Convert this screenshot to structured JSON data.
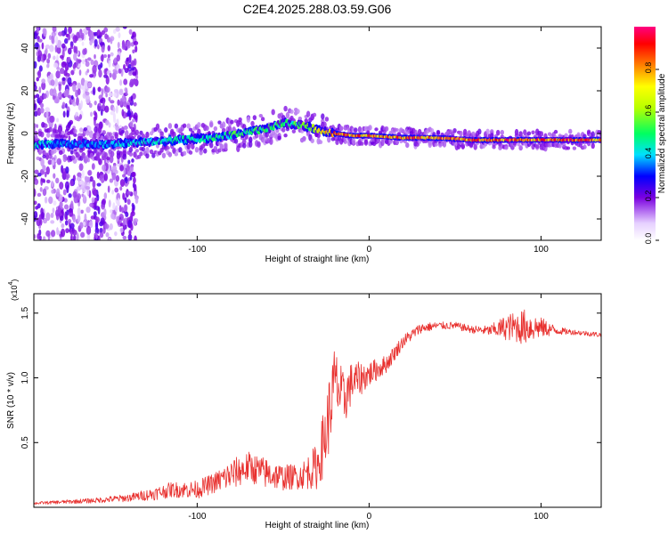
{
  "title": "C2E4.2025.288.03.59.G06",
  "chart_data": [
    {
      "type": "heatmap",
      "title": "C2E4.2025.288.03.59.G06",
      "xlabel": "Height of straight line (km)",
      "ylabel": "Frequency (Hz)",
      "xlim": [
        -195,
        135
      ],
      "ylim": [
        -50,
        50
      ],
      "x_ticks": [
        -100,
        0,
        100
      ],
      "y_ticks": [
        -40,
        -20,
        0,
        20,
        40
      ],
      "colorbar": {
        "label": "Normalized spectral amplitude",
        "range": [
          0,
          1
        ],
        "ticks": [
          "0.0",
          "0.2",
          "0.4",
          "0.6",
          "0.8"
        ]
      },
      "ridge": [
        {
          "x": -190,
          "freq": -5,
          "amp": 0.45
        },
        {
          "x": -170,
          "freq": -5,
          "amp": 0.4
        },
        {
          "x": -150,
          "freq": -5,
          "amp": 0.42
        },
        {
          "x": -130,
          "freq": -4,
          "amp": 0.45
        },
        {
          "x": -110,
          "freq": -3,
          "amp": 0.5
        },
        {
          "x": -90,
          "freq": -2,
          "amp": 0.5
        },
        {
          "x": -75,
          "freq": 0,
          "amp": 0.55
        },
        {
          "x": -60,
          "freq": 2,
          "amp": 0.55
        },
        {
          "x": -50,
          "freq": 5,
          "amp": 0.55
        },
        {
          "x": -40,
          "freq": 4,
          "amp": 0.55
        },
        {
          "x": -30,
          "freq": 2,
          "amp": 0.7
        },
        {
          "x": -20,
          "freq": 0,
          "amp": 0.9
        },
        {
          "x": -10,
          "freq": -1,
          "amp": 0.88
        },
        {
          "x": 0,
          "freq": -1,
          "amp": 0.9
        },
        {
          "x": 20,
          "freq": -2,
          "amp": 0.92
        },
        {
          "x": 40,
          "freq": -2,
          "amp": 0.95
        },
        {
          "x": 60,
          "freq": -3,
          "amp": 0.9
        },
        {
          "x": 80,
          "freq": -3,
          "amp": 0.95
        },
        {
          "x": 100,
          "freq": -3,
          "amp": 0.92
        },
        {
          "x": 120,
          "freq": -3,
          "amp": 0.92
        },
        {
          "x": 135,
          "freq": -3,
          "amp": 0.9
        }
      ],
      "noise_region": {
        "x_from": -195,
        "x_to": -135
      }
    },
    {
      "type": "line",
      "xlabel": "Height of straight line (km)",
      "ylabel": "SNR (10 * v/v)",
      "y_scale_label": "(x10^4)",
      "y_scale_base": "(x10",
      "y_scale_exp": "4",
      "xlim": [
        -195,
        135
      ],
      "ylim": [
        0,
        1.65
      ],
      "x_ticks": [
        -100,
        0,
        100
      ],
      "y_ticks": [
        "0.5",
        "1.0",
        "1.5"
      ],
      "y_tick_values": [
        0.5,
        1.0,
        1.5
      ],
      "line_color": "#e8302e",
      "series": [
        {
          "name": "SNR",
          "x": [
            -195,
            -160,
            -140,
            -125,
            -115,
            -100,
            -90,
            -80,
            -70,
            -60,
            -50,
            -40,
            -30,
            -25,
            -20,
            -15,
            -10,
            -5,
            0,
            10,
            20,
            30,
            40,
            50,
            60,
            70,
            80,
            90,
            100,
            110,
            120,
            135
          ],
          "y": [
            0.03,
            0.05,
            0.07,
            0.1,
            0.13,
            0.13,
            0.18,
            0.24,
            0.3,
            0.25,
            0.22,
            0.23,
            0.3,
            0.55,
            0.95,
            0.8,
            0.95,
            0.98,
            1.02,
            1.1,
            1.28,
            1.38,
            1.4,
            1.4,
            1.37,
            1.36,
            1.38,
            1.38,
            1.38,
            1.36,
            1.35,
            1.33
          ],
          "noise": [
            0.01,
            0.02,
            0.03,
            0.05,
            0.06,
            0.07,
            0.08,
            0.12,
            0.12,
            0.12,
            0.1,
            0.1,
            0.18,
            0.3,
            0.28,
            0.22,
            0.16,
            0.13,
            0.1,
            0.07,
            0.05,
            0.04,
            0.03,
            0.03,
            0.03,
            0.04,
            0.1,
            0.14,
            0.08,
            0.03,
            0.02,
            0.02
          ]
        }
      ]
    }
  ]
}
